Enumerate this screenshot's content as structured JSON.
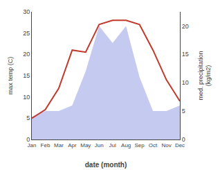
{
  "chart_data": {
    "type": "line",
    "categories": [
      "Jan",
      "Feb",
      "Mar",
      "Apr",
      "May",
      "Jun",
      "Jul",
      "Aug",
      "Sep",
      "Oct",
      "Nov",
      "Dec"
    ],
    "series": [
      {
        "type": "area",
        "color": "#c5caf0",
        "axis": "y2",
        "values": [
          4,
          5,
          5,
          6,
          12,
          20,
          17,
          20,
          11,
          5,
          5,
          6
        ]
      },
      {
        "type": "line",
        "color": "#c0392b",
        "values": [
          5,
          7,
          12,
          21,
          20.5,
          27.0,
          28,
          28,
          27,
          21,
          14,
          9
        ]
      }
    ],
    "xlabel": "date (month)",
    "ylabel": "max temp (C)",
    "y2label": "med. precipitation\n(kg/m2)",
    "ylim": [
      0,
      30
    ],
    "yticks": [
      0,
      5,
      10,
      15,
      20,
      25,
      30
    ],
    "y2lim": [
      0,
      22.5
    ],
    "y2ticks": [
      0,
      5,
      10,
      15,
      20
    ],
    "grid": false
  }
}
